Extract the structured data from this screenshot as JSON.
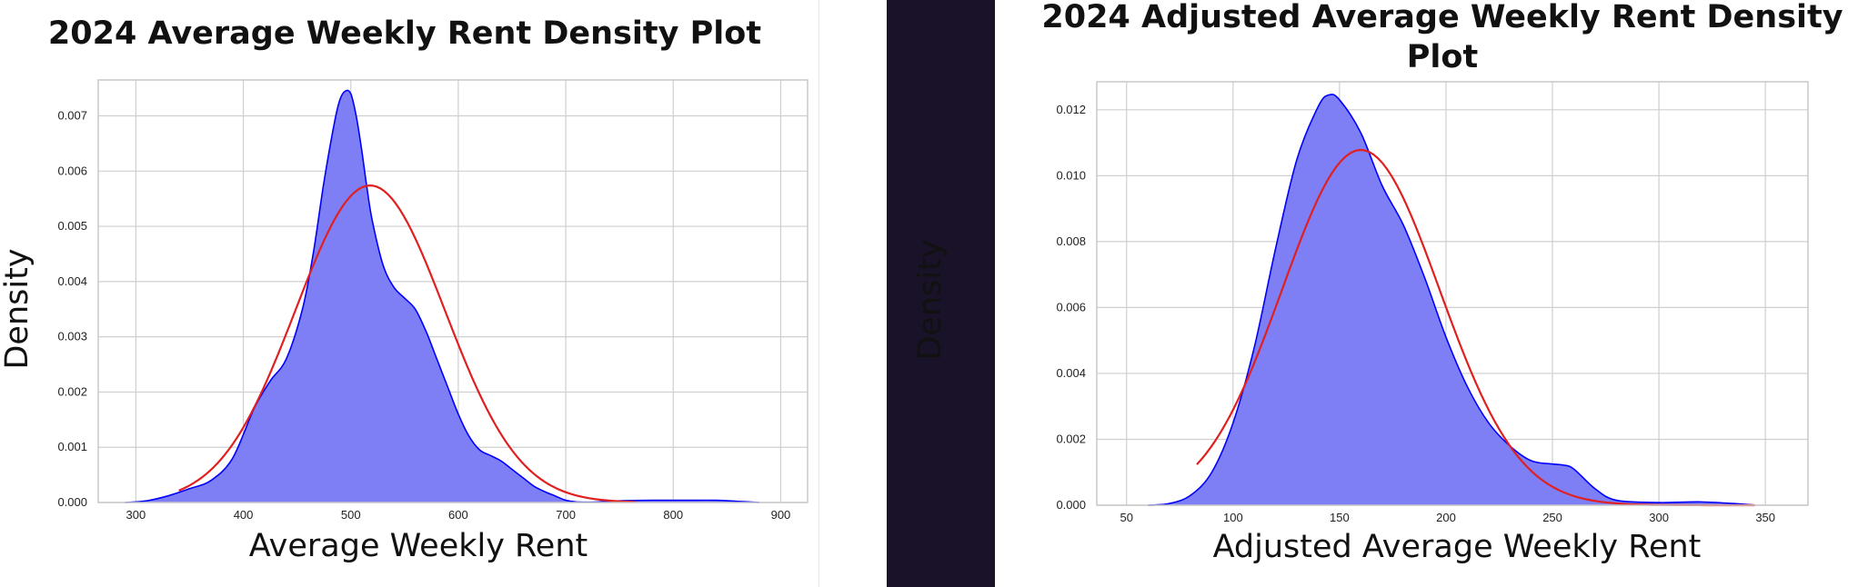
{
  "chart_data": [
    {
      "type": "area",
      "title": "2024 Average Weekly Rent Density Plot",
      "xlabel": "Average Weekly Rent",
      "ylabel": "Density",
      "xlim": [
        265,
        925
      ],
      "ylim": [
        0,
        0.00765
      ],
      "xticks": [
        300,
        400,
        500,
        600,
        700,
        800,
        900
      ],
      "xtick_labels": [
        "300",
        "400",
        "500",
        "600",
        "700",
        "800",
        "900"
      ],
      "yticks": [
        0,
        0.001,
        0.002,
        0.003,
        0.004,
        0.005,
        0.006,
        0.007
      ],
      "ytick_labels": [
        "0.000",
        "0.001",
        "0.002",
        "0.003",
        "0.004",
        "0.005",
        "0.006",
        "0.007"
      ],
      "grid": true,
      "series": [
        {
          "kind": "kde-fill",
          "color": "#0000ff",
          "fill": "#7f7ff5",
          "x": [
            290,
            310,
            330,
            350,
            370,
            390,
            410,
            425,
            440,
            455,
            465,
            475,
            485,
            490,
            495,
            500,
            505,
            510,
            515,
            520,
            530,
            540,
            550,
            560,
            570,
            580,
            590,
            600,
            610,
            620,
            630,
            640,
            650,
            660,
            670,
            680,
            690,
            700,
            710,
            720,
            730,
            750,
            780,
            810,
            840,
            860,
            880
          ],
          "y": [
            0,
            3e-05,
            0.00012,
            0.00025,
            0.0004,
            0.0008,
            0.0017,
            0.0022,
            0.0026,
            0.0035,
            0.0045,
            0.0058,
            0.0069,
            0.0073,
            0.00745,
            0.0074,
            0.007,
            0.0064,
            0.0057,
            0.0051,
            0.0043,
            0.0039,
            0.0037,
            0.0035,
            0.0031,
            0.0026,
            0.0021,
            0.0016,
            0.0012,
            0.00095,
            0.00085,
            0.00075,
            0.0006,
            0.00045,
            0.0003,
            0.0002,
            0.00012,
            4e-05,
            1e-05,
            5e-06,
            1e-05,
            3e-05,
            4e-05,
            4e-05,
            4e-05,
            2e-05,
            0
          ]
        },
        {
          "kind": "normal-curve",
          "color": "#e02020",
          "mean": 518,
          "sd": 69.5,
          "x_range": [
            340,
            765
          ]
        }
      ]
    },
    {
      "type": "area",
      "title": "2024 Adjusted Average Weekly Rent Density Plot",
      "title_lines": [
        "2024 Adjusted Average Weekly Rent Density",
        "Plot"
      ],
      "xlabel": "Adjusted Average Weekly Rent",
      "ylabel": "Density",
      "xlim": [
        36,
        370
      ],
      "ylim": [
        0,
        0.01285
      ],
      "xticks": [
        50,
        100,
        150,
        200,
        250,
        300,
        350
      ],
      "xtick_labels": [
        "50",
        "100",
        "150",
        "200",
        "250",
        "300",
        "350"
      ],
      "yticks": [
        0,
        0.002,
        0.004,
        0.006,
        0.008,
        0.01,
        0.012
      ],
      "ytick_labels": [
        "0.000",
        "0.002",
        "0.004",
        "0.006",
        "0.008",
        "0.010",
        "0.012"
      ],
      "grid": true,
      "series": [
        {
          "kind": "kde-fill",
          "color": "#0000ff",
          "fill": "#7f7ff5",
          "x": [
            60,
            70,
            80,
            90,
            100,
            110,
            120,
            130,
            140,
            145,
            150,
            160,
            170,
            180,
            190,
            200,
            210,
            220,
            230,
            240,
            250,
            255,
            260,
            270,
            280,
            300,
            320,
            340,
            345
          ],
          "y": [
            0,
            5e-05,
            0.0003,
            0.001,
            0.0025,
            0.0048,
            0.0078,
            0.0105,
            0.0121,
            0.01245,
            0.0123,
            0.0113,
            0.0097,
            0.0085,
            0.0069,
            0.0051,
            0.0036,
            0.0025,
            0.0018,
            0.00135,
            0.00125,
            0.00122,
            0.0011,
            0.0005,
            0.00015,
            8e-05,
            0.0001,
            3e-05,
            0
          ]
        },
        {
          "kind": "normal-curve",
          "color": "#e02020",
          "mean": 160,
          "sd": 37,
          "x_range": [
            83,
            345
          ]
        }
      ]
    }
  ]
}
